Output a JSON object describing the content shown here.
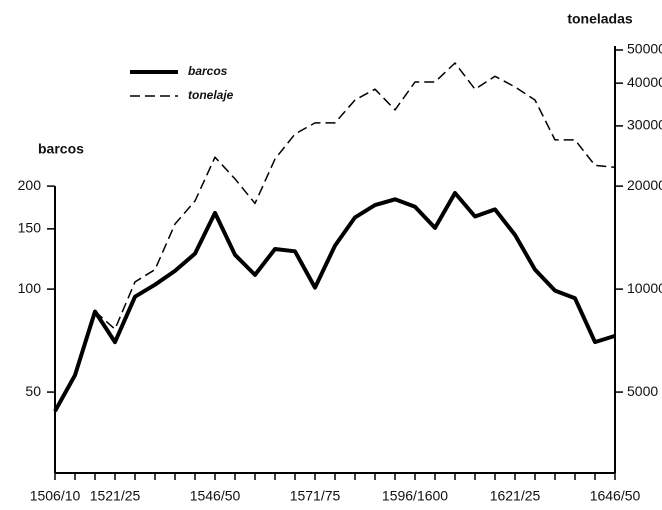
{
  "chart_data": {
    "type": "line",
    "ylabel": "barcos",
    "y2label": "toneladas",
    "categories": [
      "1506/10",
      null,
      null,
      "1521/25",
      null,
      null,
      null,
      null,
      "1546/50",
      null,
      null,
      null,
      null,
      "1571/75",
      null,
      null,
      null,
      null,
      "1596/1600",
      null,
      null,
      null,
      null,
      "1621/25",
      null,
      null,
      null,
      null,
      "1646/50"
    ],
    "log_scale": true,
    "ylim": [
      29,
      500
    ],
    "yticks": [
      50,
      100,
      150,
      200
    ],
    "y2lim": [
      2900,
      50000
    ],
    "y2ticks": [
      5000,
      10000,
      20000,
      30000,
      40000,
      50000
    ],
    "legend": "upper left",
    "series": [
      {
        "name": "barcos",
        "color": "#000000",
        "dash": false,
        "values": [
          44,
          56,
          86,
          70,
          95,
          103,
          113,
          127,
          167,
          126,
          110,
          131,
          129,
          101,
          134,
          162,
          176,
          183,
          174,
          151,
          191,
          163,
          171,
          144,
          114,
          99,
          94,
          70,
          73
        ]
      },
      {
        "name": "tonelaje",
        "color": "#000000",
        "dash": true,
        "axis": "y2",
        "values": [
          null,
          null,
          8600,
          7640,
          10500,
          11400,
          15500,
          18100,
          24300,
          21000,
          17800,
          24000,
          28400,
          30600,
          30600,
          35700,
          38400,
          33400,
          40300,
          40300,
          45800,
          38400,
          41900,
          39000,
          35700,
          27300,
          27300,
          23000,
          22700
        ]
      }
    ]
  }
}
